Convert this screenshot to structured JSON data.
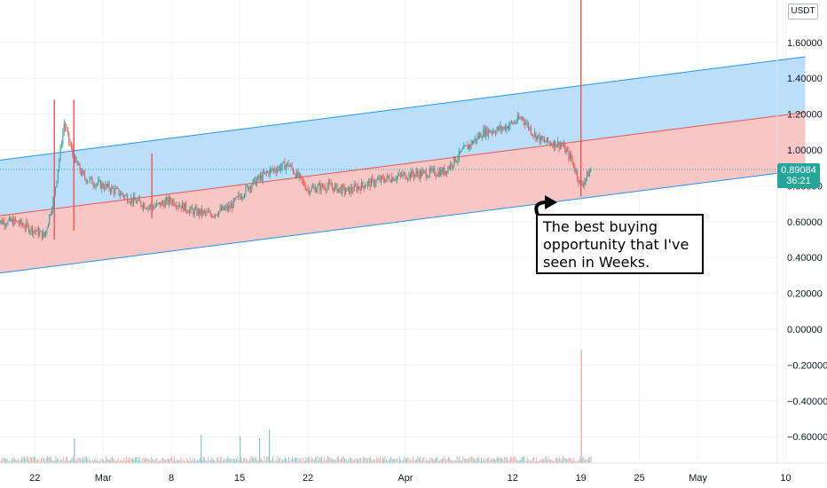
{
  "axis": {
    "currency": "USDT",
    "current_price": "0.89084",
    "countdown": "36:21"
  },
  "annotation": {
    "text": "The best buying opportunity that I've seen in Weeks."
  },
  "colors": {
    "up": "#26a69a",
    "down": "#ef5350",
    "upper_channel_fill": "#bbdefb",
    "lower_channel_fill": "#f8c6c4",
    "channel_line": "#2196f3",
    "median_line": "#ef5350",
    "grid": "#f0f3fa"
  },
  "chart_data": {
    "type": "candlestick",
    "x_ticks": [
      "22",
      "Mar",
      "8",
      "15",
      "22",
      "Apr",
      "12",
      "19",
      "25",
      "May",
      "10"
    ],
    "y_ticks": [
      1.6,
      1.4,
      1.2,
      1.0,
      0.8,
      0.6,
      0.4,
      0.2,
      0.0,
      -0.2,
      -0.4,
      -0.6
    ],
    "y_tick_labels": [
      "1.60000",
      "1.40000",
      "1.20000",
      "1.00000",
      "0.80000",
      "0.60000",
      "0.40000",
      "0.20000",
      "0.00000",
      "−0.20000",
      "−0.40000",
      "−0.60000"
    ],
    "ylim": [
      -0.78,
      1.85
    ],
    "x_range": [
      "Feb 18",
      "May 12"
    ],
    "last_price": 0.89084,
    "price_path": [
      {
        "x": "Feb 18",
        "y": 0.6
      },
      {
        "x": "Feb 20",
        "y": 0.6
      },
      {
        "x": "Feb 22",
        "y": 0.55
      },
      {
        "x": "Feb 23",
        "y": 0.52
      },
      {
        "x": "Feb 24",
        "y": 0.75
      },
      {
        "x": "Feb 25",
        "y": 1.15
      },
      {
        "x": "Feb 26",
        "y": 0.95
      },
      {
        "x": "Feb 27",
        "y": 0.85
      },
      {
        "x": "Feb 28",
        "y": 0.82
      },
      {
        "x": "Mar 2",
        "y": 0.78
      },
      {
        "x": "Mar 4",
        "y": 0.72
      },
      {
        "x": "Mar 6",
        "y": 0.68
      },
      {
        "x": "Mar 8",
        "y": 0.72
      },
      {
        "x": "Mar 10",
        "y": 0.66
      },
      {
        "x": "Mar 12",
        "y": 0.64
      },
      {
        "x": "Mar 14",
        "y": 0.68
      },
      {
        "x": "Mar 16",
        "y": 0.8
      },
      {
        "x": "Mar 18",
        "y": 0.88
      },
      {
        "x": "Mar 20",
        "y": 0.92
      },
      {
        "x": "Mar 22",
        "y": 0.78
      },
      {
        "x": "Mar 24",
        "y": 0.8
      },
      {
        "x": "Mar 26",
        "y": 0.77
      },
      {
        "x": "Mar 28",
        "y": 0.81
      },
      {
        "x": "Mar 30",
        "y": 0.84
      },
      {
        "x": "Apr 1",
        "y": 0.86
      },
      {
        "x": "Apr 3",
        "y": 0.87
      },
      {
        "x": "Apr 5",
        "y": 0.88
      },
      {
        "x": "Apr 7",
        "y": 1.0
      },
      {
        "x": "Apr 9",
        "y": 1.1
      },
      {
        "x": "Apr 11",
        "y": 1.12
      },
      {
        "x": "Apr 13",
        "y": 1.18
      },
      {
        "x": "Apr 14",
        "y": 1.1
      },
      {
        "x": "Apr 15",
        "y": 1.05
      },
      {
        "x": "Apr 17",
        "y": 1.03
      },
      {
        "x": "Apr 18",
        "y": 0.95
      },
      {
        "x": "Apr 19",
        "y": 0.8
      },
      {
        "x": "Apr 20",
        "y": 0.89
      }
    ],
    "spikes": [
      {
        "x": "Feb 24",
        "high": 1.28,
        "low": 0.5
      },
      {
        "x": "Feb 26",
        "high": 1.28,
        "low": 0.55
      },
      {
        "x": "Mar 6",
        "high": 0.98,
        "low": 0.62
      },
      {
        "x": "Apr 19",
        "high": 1.85,
        "low": 0.74
      }
    ],
    "channel": {
      "upper": [
        {
          "x": "Feb 18",
          "y": 0.94
        },
        {
          "x": "May 12",
          "y": 1.52
        }
      ],
      "median": [
        {
          "x": "Feb 18",
          "y": 0.63
        },
        {
          "x": "May 12",
          "y": 1.21
        }
      ],
      "lower": [
        {
          "x": "Feb 18",
          "y": 0.31
        },
        {
          "x": "May 12",
          "y": 0.89
        }
      ]
    },
    "volume_spike_dates": [
      "Feb 26",
      "Mar 11",
      "Mar 15",
      "Mar 17",
      "Mar 18",
      "Apr 19"
    ]
  }
}
